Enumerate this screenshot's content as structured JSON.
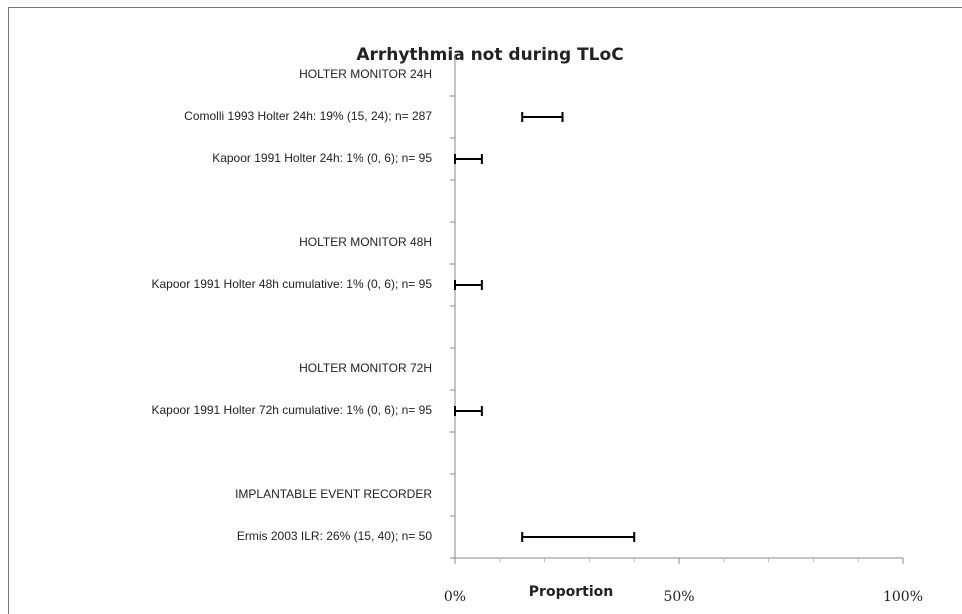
{
  "chart_data": {
    "type": "forest",
    "title": "Arrhythmia not during TLoC",
    "xlabel": "Proportion",
    "categories": [
      "HOLTER MONITOR 24H",
      "Comolli 1993 Holter 24h: 19% (15, 24); n= 287",
      "Kapoor 1991 Holter 24h: 1% (0, 6); n= 95",
      null,
      "HOLTER MONITOR 48H",
      "Kapoor 1991 Holter 48h cumulative: 1% (0, 6); n= 95",
      null,
      "HOLTER MONITOR 72H",
      "Kapoor 1991 Holter 72h cumulative: 1% (0, 6); n= 95",
      null,
      "IMPLANTABLE EVENT RECORDER",
      "Ermis 2003 ILR: 26% (15, 40); n= 50"
    ],
    "lower": [
      null,
      15,
      0,
      null,
      null,
      0,
      null,
      null,
      0,
      null,
      null,
      15
    ],
    "upper": [
      null,
      24,
      6,
      null,
      null,
      6,
      null,
      null,
      6,
      null,
      null,
      40
    ],
    "color": "#000000",
    "xlim": [
      0,
      100
    ],
    "xticks": [
      {
        "value": 0,
        "label": "0%"
      },
      {
        "value": 50,
        "label": "50%"
      },
      {
        "value": 100,
        "label": "100%"
      }
    ],
    "xminorticks": [
      10,
      20,
      30,
      40,
      60,
      70,
      80,
      90
    ]
  }
}
